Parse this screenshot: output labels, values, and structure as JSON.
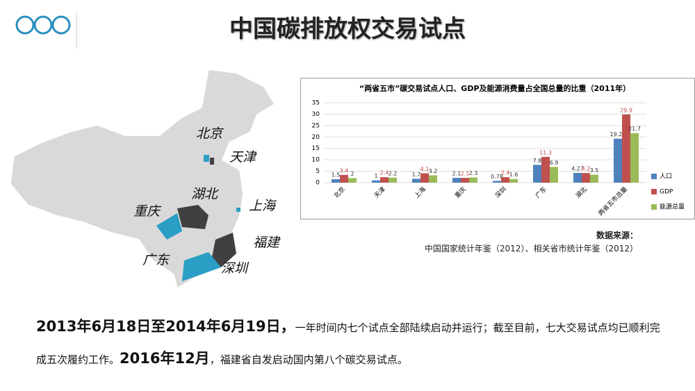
{
  "header": {
    "title": "中国碳排放权交易试点"
  },
  "map": {
    "labels": [
      "北京",
      "天津",
      "湖北",
      "上海",
      "重庆",
      "福建",
      "广东",
      "深圳"
    ]
  },
  "chart_data": {
    "type": "bar",
    "title": "“两省五市”碳交易试点人口、GDP及能源消费量占全国总量的比重（2011年）",
    "categories": [
      "北京",
      "天津",
      "上海",
      "重庆",
      "深圳",
      "广东",
      "湖北",
      "两省五市总量"
    ],
    "series": [
      {
        "name": "人口",
        "color": "#4f81bd",
        "values": [
          1.5,
          1,
          1.7,
          2.1,
          0.78,
          7.8,
          4.27,
          19.26
        ]
      },
      {
        "name": "GDP",
        "color": "#c0504d",
        "values": [
          3.4,
          2.4,
          4.1,
          2.1,
          2.4,
          11.3,
          4.2,
          29.9
        ]
      },
      {
        "name": "能源总量",
        "color": "#9bbb59",
        "values": [
          2,
          2.2,
          3.2,
          2.3,
          1.6,
          6.9,
          3.5,
          21.7
        ]
      }
    ],
    "ylim": [
      0,
      35
    ],
    "yticks": [
      0,
      5,
      10,
      15,
      20,
      25,
      30,
      35
    ],
    "grid": true
  },
  "source": {
    "label": "数据来源：",
    "text": "中国国家统计年鉴（2012）、相关省市统计年鉴（2012）"
  },
  "body": {
    "p1": [
      "2013年6月18日至2014年6月19日，",
      "一年时间内七个试点全部陆续启动并运行；截至目前，七大交易试点均已顺利完成五次履约工作。",
      "2016年12月",
      "，福建省自发启动国内第八个碳交易试点。"
    ]
  }
}
